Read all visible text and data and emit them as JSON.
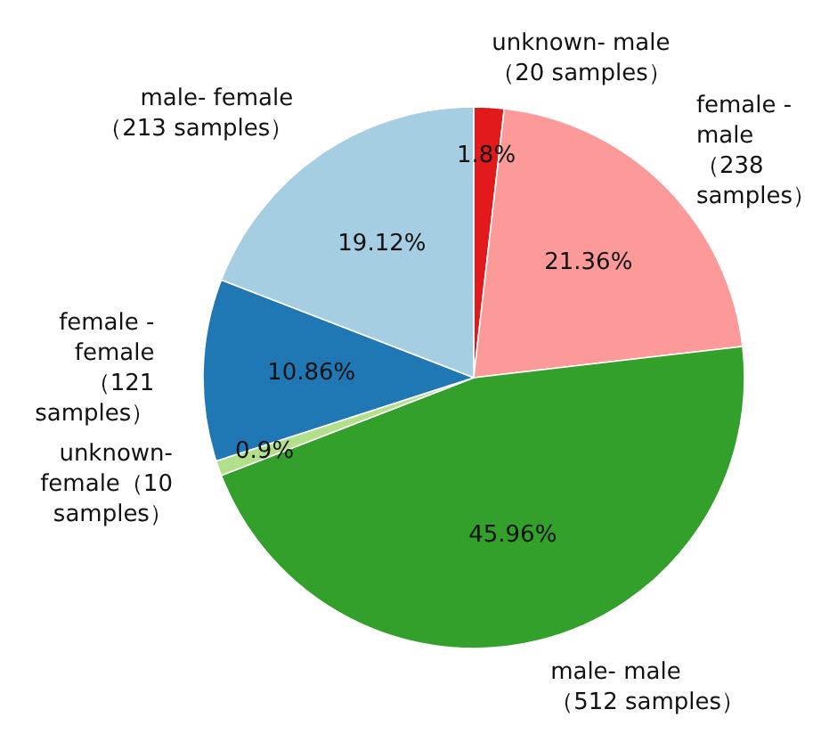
{
  "chart_data": {
    "type": "pie",
    "categories": [
      "unknown- male\n（20 samples）",
      "female -\nmale\n（238\nsamples）",
      "male- male\n（512 samples）",
      "unknown-\nfemale（10\nsamples）",
      "female -\nfemale\n（121\nsamples）",
      "male- female\n（213 samples）"
    ],
    "values": [
      1.8,
      21.36,
      45.96,
      0.9,
      10.86,
      19.12
    ],
    "colors": [
      "#e31a1c",
      "#fb9a99",
      "#33a02c",
      "#b2df8a",
      "#1f78b4",
      "#a6cee3"
    ],
    "value_labels": [
      "1.8%",
      "21.36%",
      "45.96%",
      "0.9%",
      "10.86%",
      "19.12%"
    ]
  }
}
